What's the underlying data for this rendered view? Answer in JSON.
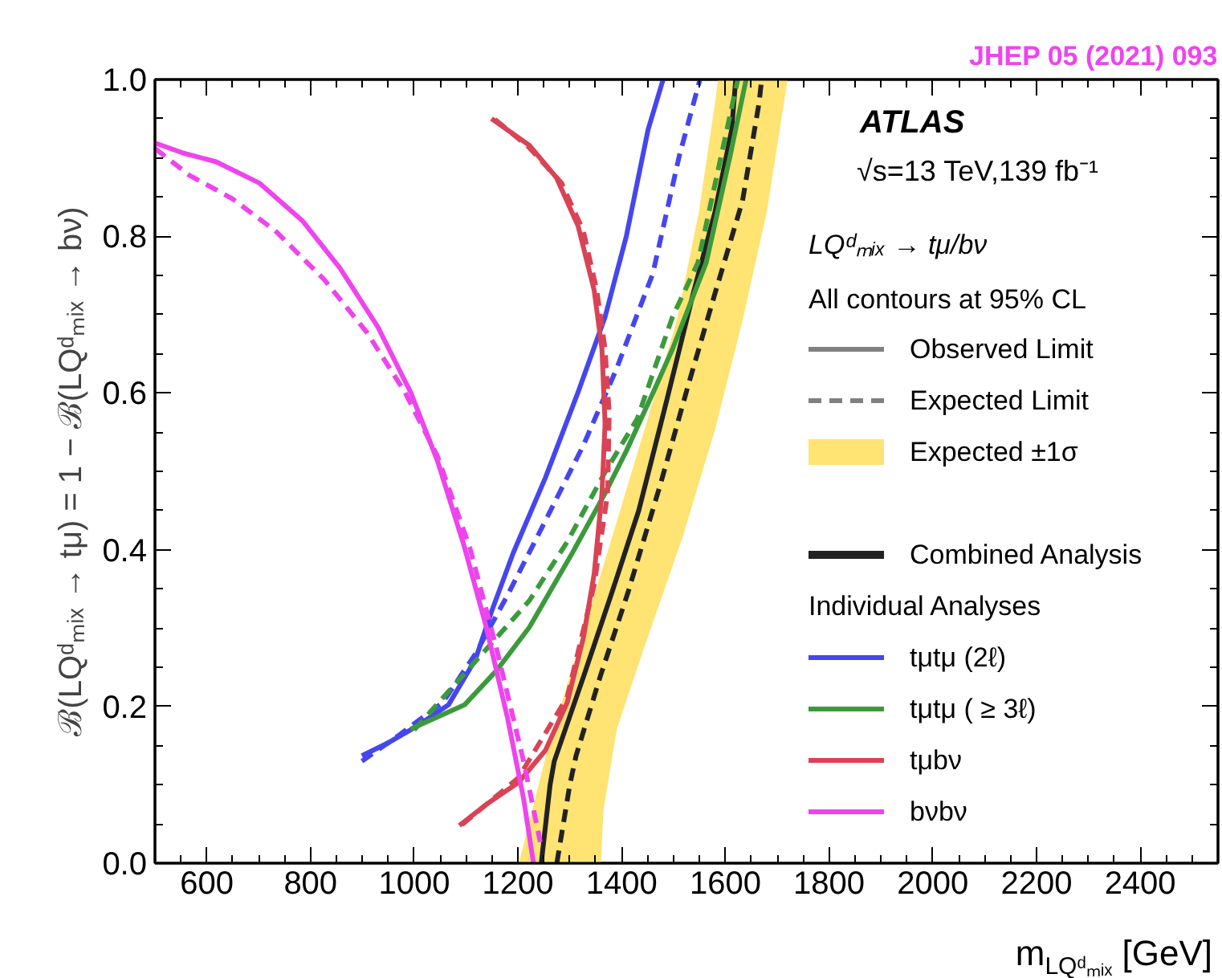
{
  "chart_data": {
    "type": "line",
    "xlabel": "m$_{LQᵈₘᵢₓ}$ [GeV]",
    "ylabel": "ℬ(LQᵈₘᵢₓ → tμ) = 1 − ℬ(LQᵈₘᵢₓ → bν)",
    "legend_title": "LQᵈₘᵢₓ → tμ/bν",
    "annotations": [
      "JHEP 05 (2021) 093",
      "ATLAS",
      "√s=13 TeV,139 fb⁻¹",
      "All contours at 95% CL",
      "Individual Analyses"
    ],
    "xlim": [
      500,
      2550
    ],
    "ylim": [
      0,
      1.0
    ],
    "xticks": [
      600,
      800,
      1000,
      1200,
      1400,
      1600,
      1800,
      2000,
      2200,
      2400
    ],
    "yticks": [
      {
        "value": 0,
        "label": "0.0"
      },
      {
        "value": 0.2,
        "label": "0.2"
      },
      {
        "value": 0.4,
        "label": "0.4"
      },
      {
        "value": 0.6,
        "label": "0.6"
      },
      {
        "value": 0.8,
        "label": "0.8"
      },
      {
        "value": 1.0,
        "label": "1.0"
      }
    ],
    "grid": false,
    "legend": "right",
    "marker": "none",
    "series": [
      {
        "name": "Observed Limit",
        "color": "#808080",
        "line_style": "solid"
      },
      {
        "name": "Expected Limit",
        "color": "#808080",
        "line_style": "dashed"
      },
      {
        "name": "Expected ±1σ",
        "type": "area",
        "color": "#ffe373",
        "x": [
          1202,
          1254,
          1317,
          1381,
          1444,
          1506,
          1549,
          1580,
          1586,
          1720,
          1680,
          1633,
          1580,
          1517,
          1444,
          1391,
          1365,
          1360
        ],
        "values": [
          0,
          0.137,
          0.276,
          0.415,
          0.553,
          0.692,
          0.831,
          0.97,
          1.0,
          1.0,
          0.831,
          0.692,
          0.553,
          0.415,
          0.276,
          0.172,
          0.068,
          0
        ]
      },
      {
        "name": "Combined Analysis",
        "color": "#222222",
        "line_style": "solid",
        "x": [
          1245,
          1262,
          1270,
          1328,
          1381,
          1433,
          1486,
          1538,
          1580,
          1612,
          1620
        ],
        "values": [
          0,
          0.1,
          0.13,
          0.241,
          0.345,
          0.45,
          0.588,
          0.727,
          0.831,
          0.935,
          1.0
        ]
      },
      {
        "color": "#222222",
        "line_style": "dashed",
        "x": [
          1275,
          1300,
          1312,
          1360,
          1412,
          1475,
          1528,
          1580,
          1633,
          1665,
          1670
        ],
        "values": [
          0,
          0.1,
          0.137,
          0.241,
          0.345,
          0.484,
          0.609,
          0.727,
          0.845,
          0.97,
          1.0
        ]
      },
      {
        "name": "tμtμ (2ℓ)",
        "color": "#4646ee",
        "line_style": "solid",
        "x": [
          899,
          951,
          1003,
          1066,
          1118,
          1149,
          1191,
          1253,
          1316,
          1368,
          1409,
          1451,
          1480
        ],
        "values": [
          0.137,
          0.154,
          0.174,
          0.202,
          0.26,
          0.321,
          0.396,
          0.492,
          0.601,
          0.697,
          0.8,
          0.936,
          1.0
        ]
      },
      {
        "color": "#4646ee",
        "line_style": "dashed",
        "x": [
          899,
          972,
          1055,
          1118,
          1180,
          1253,
          1326,
          1389,
          1460,
          1511,
          1551
        ],
        "values": [
          0.13,
          0.164,
          0.205,
          0.267,
          0.342,
          0.437,
          0.533,
          0.629,
          0.752,
          0.902,
          1.0
        ]
      },
      {
        "name": "tμtμ ( ≥ 3ℓ)",
        "color": "#3c9a3c",
        "line_style": "solid",
        "x": [
          993,
          1097,
          1159,
          1222,
          1305,
          1368,
          1409,
          1461,
          1498,
          1563,
          1609,
          1640
        ],
        "values": [
          0.171,
          0.202,
          0.246,
          0.301,
          0.396,
          0.472,
          0.526,
          0.601,
          0.656,
          0.766,
          0.902,
          1.0
        ]
      },
      {
        "color": "#3c9a3c",
        "line_style": "dashed",
        "x": [
          1000,
          1066,
          1139,
          1222,
          1295,
          1368,
          1430,
          1498,
          1547,
          1624
        ],
        "values": [
          0.17,
          0.219,
          0.273,
          0.335,
          0.41,
          0.499,
          0.567,
          0.697,
          0.766,
          1.0
        ]
      },
      {
        "name": "tμbν",
        "color": "#d84455",
        "line_style": "solid",
        "x": [
          1087,
          1139,
          1201,
          1253,
          1295,
          1326,
          1347,
          1362,
          1368,
          1362,
          1347,
          1316,
          1274,
          1222,
          1149
        ],
        "values": [
          0.048,
          0.075,
          0.103,
          0.144,
          0.205,
          0.287,
          0.369,
          0.472,
          0.561,
          0.656,
          0.731,
          0.813,
          0.875,
          0.916,
          0.95
        ]
      },
      {
        "color": "#d84455",
        "line_style": "dashed",
        "x": [
          1092,
          1201,
          1295,
          1347,
          1373,
          1376,
          1368,
          1352,
          1326,
          1284,
          1222,
          1154
        ],
        "values": [
          0.049,
          0.109,
          0.212,
          0.355,
          0.472,
          0.574,
          0.656,
          0.731,
          0.807,
          0.868,
          0.913,
          0.95
        ]
      },
      {
        "name": "bνbν",
        "color": "#ee44ee",
        "line_style": "solid",
        "x": [
          500,
          555,
          618,
          701,
          784,
          857,
          930,
          993,
          1045,
          1097,
          1139,
          1180,
          1211,
          1230
        ],
        "values": [
          0.919,
          0.906,
          0.895,
          0.868,
          0.82,
          0.759,
          0.684,
          0.601,
          0.513,
          0.403,
          0.301,
          0.185,
          0.082,
          0
        ]
      },
      {
        "color": "#ee44ee",
        "line_style": "dashed",
        "x": [
          500,
          566,
          649,
          732,
          826,
          909,
          982,
          1045,
          1107,
          1159,
          1211,
          1243
        ],
        "values": [
          0.912,
          0.878,
          0.848,
          0.807,
          0.745,
          0.677,
          0.601,
          0.519,
          0.403,
          0.273,
          0.13,
          0.027
        ]
      }
    ]
  }
}
